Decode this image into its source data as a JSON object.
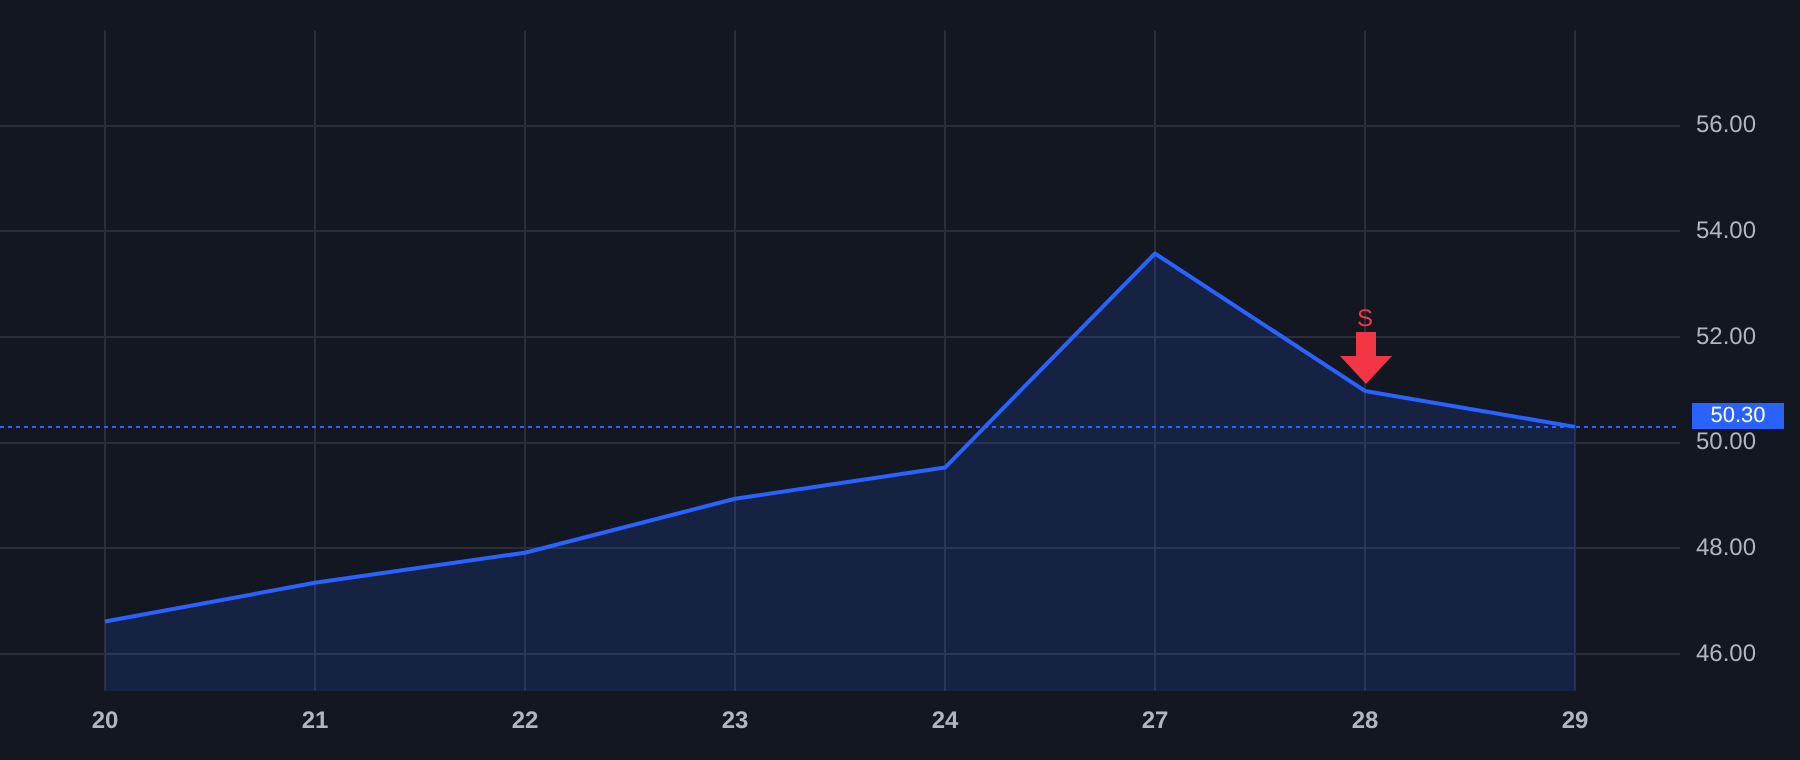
{
  "chart_data": {
    "type": "area",
    "categories": [
      "20",
      "21",
      "22",
      "23",
      "24",
      "27",
      "28",
      "29"
    ],
    "series": [
      {
        "color": "#2962ff",
        "values": [
          46.62,
          47.35,
          47.92,
          48.94,
          49.53,
          53.58,
          50.98,
          50.3
        ]
      }
    ],
    "ylim": [
      45.3,
      57.8
    ],
    "yticks": [
      {
        "value": 46,
        "label": "46.00"
      },
      {
        "value": 48,
        "label": "48.00"
      },
      {
        "value": 50,
        "label": "50.00"
      },
      {
        "value": 52,
        "label": "52.00"
      },
      {
        "value": 54,
        "label": "54.00"
      },
      {
        "value": 56,
        "label": "56.00"
      }
    ],
    "grid": true,
    "marker": "none",
    "legend": false,
    "ref_lines": [
      {
        "axis": "y",
        "value": 50.3,
        "label": "50.30",
        "color": "#2962ff",
        "line_style": "dotted"
      }
    ],
    "annotations": [
      {
        "text": "S",
        "x": "28",
        "y": 50.98
      }
    ]
  }
}
